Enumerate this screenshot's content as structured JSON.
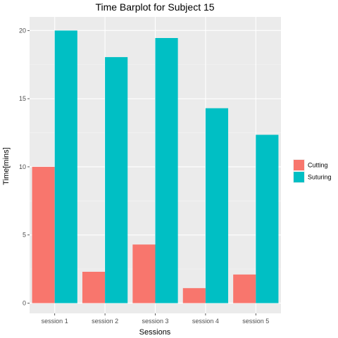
{
  "chart_data": {
    "type": "bar",
    "title": "Time Barplot for Subject  15",
    "xlabel": "Sessions",
    "ylabel": "Time[mins]",
    "categories": [
      "session 1",
      "session 2",
      "session 3",
      "session 4",
      "session 5"
    ],
    "series": [
      {
        "name": "Cutting",
        "color": "#F8766D",
        "values": [
          10.0,
          2.3,
          4.3,
          1.1,
          2.1
        ]
      },
      {
        "name": "Suturing",
        "color": "#00BFC4",
        "values": [
          20.0,
          18.05,
          19.45,
          14.3,
          12.35
        ]
      }
    ],
    "ylim": [
      -0.75,
      21.0
    ],
    "yticks": [
      0,
      5,
      10,
      15,
      20
    ],
    "grid": true,
    "panel_background": "#EBEBEB",
    "legend_position": "right"
  }
}
